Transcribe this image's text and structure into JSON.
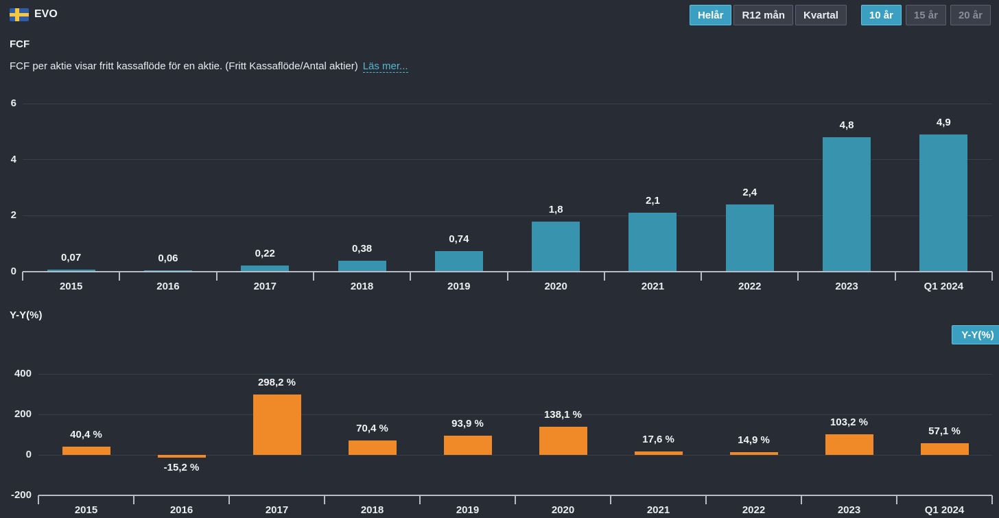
{
  "header": {
    "ticker": "EVO",
    "flag": "sweden-flag",
    "period_buttons": [
      {
        "label": "Helår",
        "active": true,
        "disabled": false
      },
      {
        "label": "R12 mån",
        "active": false,
        "disabled": false
      },
      {
        "label": "Kvartal",
        "active": false,
        "disabled": false
      }
    ],
    "range_buttons": [
      {
        "label": "10 år",
        "active": true,
        "disabled": false
      },
      {
        "label": "15 år",
        "active": false,
        "disabled": true
      },
      {
        "label": "20 år",
        "active": false,
        "disabled": true
      }
    ]
  },
  "section": {
    "title": "FCF",
    "description": "FCF per aktie visar fritt kassaflöde för en aktie. (Fritt Kassaflöde/Antal aktier)",
    "read_more": "Läs mer..."
  },
  "yy": {
    "section_label": "Y-Y(%)",
    "button_label": "Y-Y(%)"
  },
  "colors": {
    "background": "#282c34",
    "accent": "#3b9fc2",
    "fcf_bar": "#3893ae",
    "yoy_bar": "#f08a29",
    "link": "#54b7d4"
  },
  "chart_data": [
    {
      "type": "bar",
      "title": "FCF",
      "ylabel": "",
      "categories": [
        "2015",
        "2016",
        "2017",
        "2018",
        "2019",
        "2020",
        "2021",
        "2022",
        "2023",
        "Q1 2024"
      ],
      "values": [
        0.07,
        0.06,
        0.22,
        0.38,
        0.74,
        1.8,
        2.1,
        2.4,
        4.8,
        4.9
      ],
      "labels": [
        "0,07",
        "0,06",
        "0,22",
        "0,38",
        "0,74",
        "1,8",
        "2,1",
        "2,4",
        "4,8",
        "4,9"
      ],
      "yticks": [
        0,
        2,
        4,
        6
      ],
      "ylim": [
        0,
        6
      ],
      "grid": true,
      "legend": "none",
      "bar_color": "#3893ae"
    },
    {
      "type": "bar",
      "title": "Y-Y(%)",
      "ylabel": "",
      "categories": [
        "2015",
        "2016",
        "2017",
        "2018",
        "2019",
        "2020",
        "2021",
        "2022",
        "2023",
        "Q1 2024"
      ],
      "values": [
        40.4,
        -15.2,
        298.2,
        70.4,
        93.9,
        138.1,
        17.6,
        14.9,
        103.2,
        57.1
      ],
      "labels": [
        "40,4 %",
        "-15,2 %",
        "298,2 %",
        "70,4 %",
        "93,9 %",
        "138,1 %",
        "17,6 %",
        "14,9 %",
        "103,2 %",
        "57,1 %"
      ],
      "yticks": [
        -200,
        0,
        200,
        400
      ],
      "ylim": [
        -200,
        400
      ],
      "grid": true,
      "legend": "none",
      "bar_color": "#f08a29"
    }
  ]
}
